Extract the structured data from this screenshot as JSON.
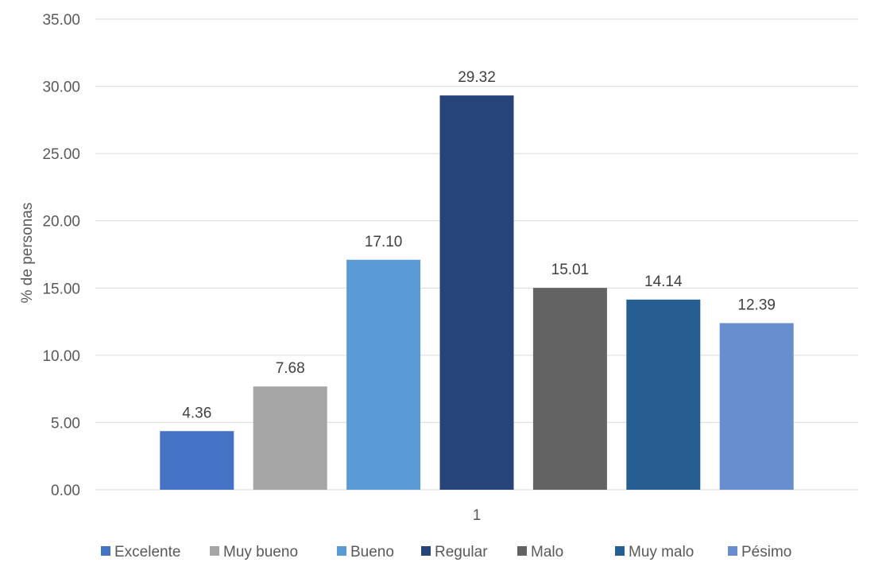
{
  "chart_data": {
    "type": "bar",
    "categories": [
      "1"
    ],
    "series": [
      {
        "name": "Excelente",
        "values": [
          4.36
        ],
        "color": "#4472c4"
      },
      {
        "name": "Muy bueno",
        "values": [
          7.68
        ],
        "color": "#a5a5a5"
      },
      {
        "name": "Bueno",
        "values": [
          17.1
        ],
        "color": "#5b9bd5"
      },
      {
        "name": "Regular",
        "values": [
          29.32
        ],
        "color": "#264478"
      },
      {
        "name": "Malo",
        "values": [
          15.01
        ],
        "color": "#636363"
      },
      {
        "name": "Muy malo",
        "values": [
          14.14
        ],
        "color": "#255e91"
      },
      {
        "name": "Pésimo",
        "values": [
          12.39
        ],
        "color": "#698ed0"
      }
    ],
    "data_labels": [
      "4.36",
      "7.68",
      "17.10",
      "29.32",
      "15.01",
      "14.14",
      "12.39"
    ],
    "title": "",
    "xlabel": "",
    "ylabel": "% de personas",
    "ylim": [
      0,
      35
    ],
    "yticks": [
      "0.00",
      "5.00",
      "10.00",
      "15.00",
      "20.00",
      "25.00",
      "30.00",
      "35.00"
    ],
    "grid": true,
    "legend_position": "bottom"
  }
}
